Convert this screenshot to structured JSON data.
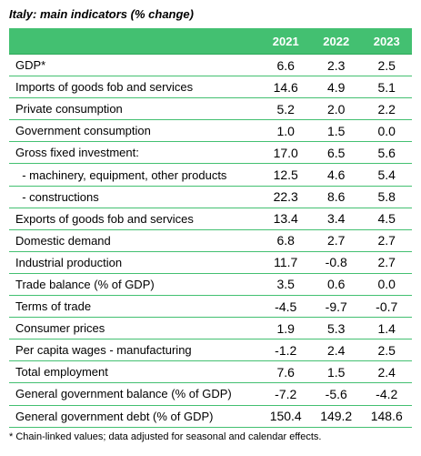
{
  "title": "Italy: main indicators (% change)",
  "columns": [
    "2021",
    "2022",
    "2023"
  ],
  "rows": [
    {
      "label": "GDP*",
      "values": [
        "6.6",
        "2.3",
        "2.5"
      ]
    },
    {
      "label": "Imports of goods fob and services",
      "values": [
        "14.6",
        "4.9",
        "5.1"
      ]
    },
    {
      "label": "Private consumption",
      "values": [
        "5.2",
        "2.0",
        "2.2"
      ]
    },
    {
      "label": "Government consumption",
      "values": [
        "1.0",
        "1.5",
        "0.0"
      ]
    },
    {
      "label": "Gross fixed investment:",
      "values": [
        "17.0",
        "6.5",
        "5.6"
      ]
    },
    {
      "label": "  - machinery, equipment, other products",
      "values": [
        "12.5",
        "4.6",
        "5.4"
      ]
    },
    {
      "label": "  - constructions",
      "values": [
        "22.3",
        "8.6",
        "5.8"
      ]
    },
    {
      "label": "Exports of goods fob and services",
      "values": [
        "13.4",
        "3.4",
        "4.5"
      ]
    },
    {
      "label": "Domestic demand",
      "values": [
        "6.8",
        "2.7",
        "2.7"
      ]
    },
    {
      "label": "Industrial production",
      "values": [
        "11.7",
        "-0.8",
        "2.7"
      ]
    },
    {
      "label": "Trade balance (% of GDP)",
      "values": [
        "3.5",
        "0.6",
        "0.0"
      ]
    },
    {
      "label": "Terms of trade",
      "values": [
        "-4.5",
        "-9.7",
        "-0.7"
      ]
    },
    {
      "label": "Consumer prices",
      "values": [
        "1.9",
        "5.3",
        "1.4"
      ]
    },
    {
      "label": "Per capita wages - manufacturing",
      "values": [
        "-1.2",
        "2.4",
        "2.5"
      ]
    },
    {
      "label": "Total employment",
      "values": [
        "7.6",
        "1.5",
        "2.4"
      ]
    },
    {
      "label": "General government balance (% of GDP)",
      "values": [
        "-7.2",
        "-5.6",
        "-4.2"
      ]
    },
    {
      "label": "General government debt (% of GDP)",
      "values": [
        "150.4",
        "149.2",
        "148.6"
      ]
    }
  ],
  "footnote": "* Chain-linked values; data adjusted for seasonal and calendar effects.",
  "colors": {
    "header_bg": "#43c071",
    "rule": "#43c071",
    "header_text": "#ffffff"
  }
}
